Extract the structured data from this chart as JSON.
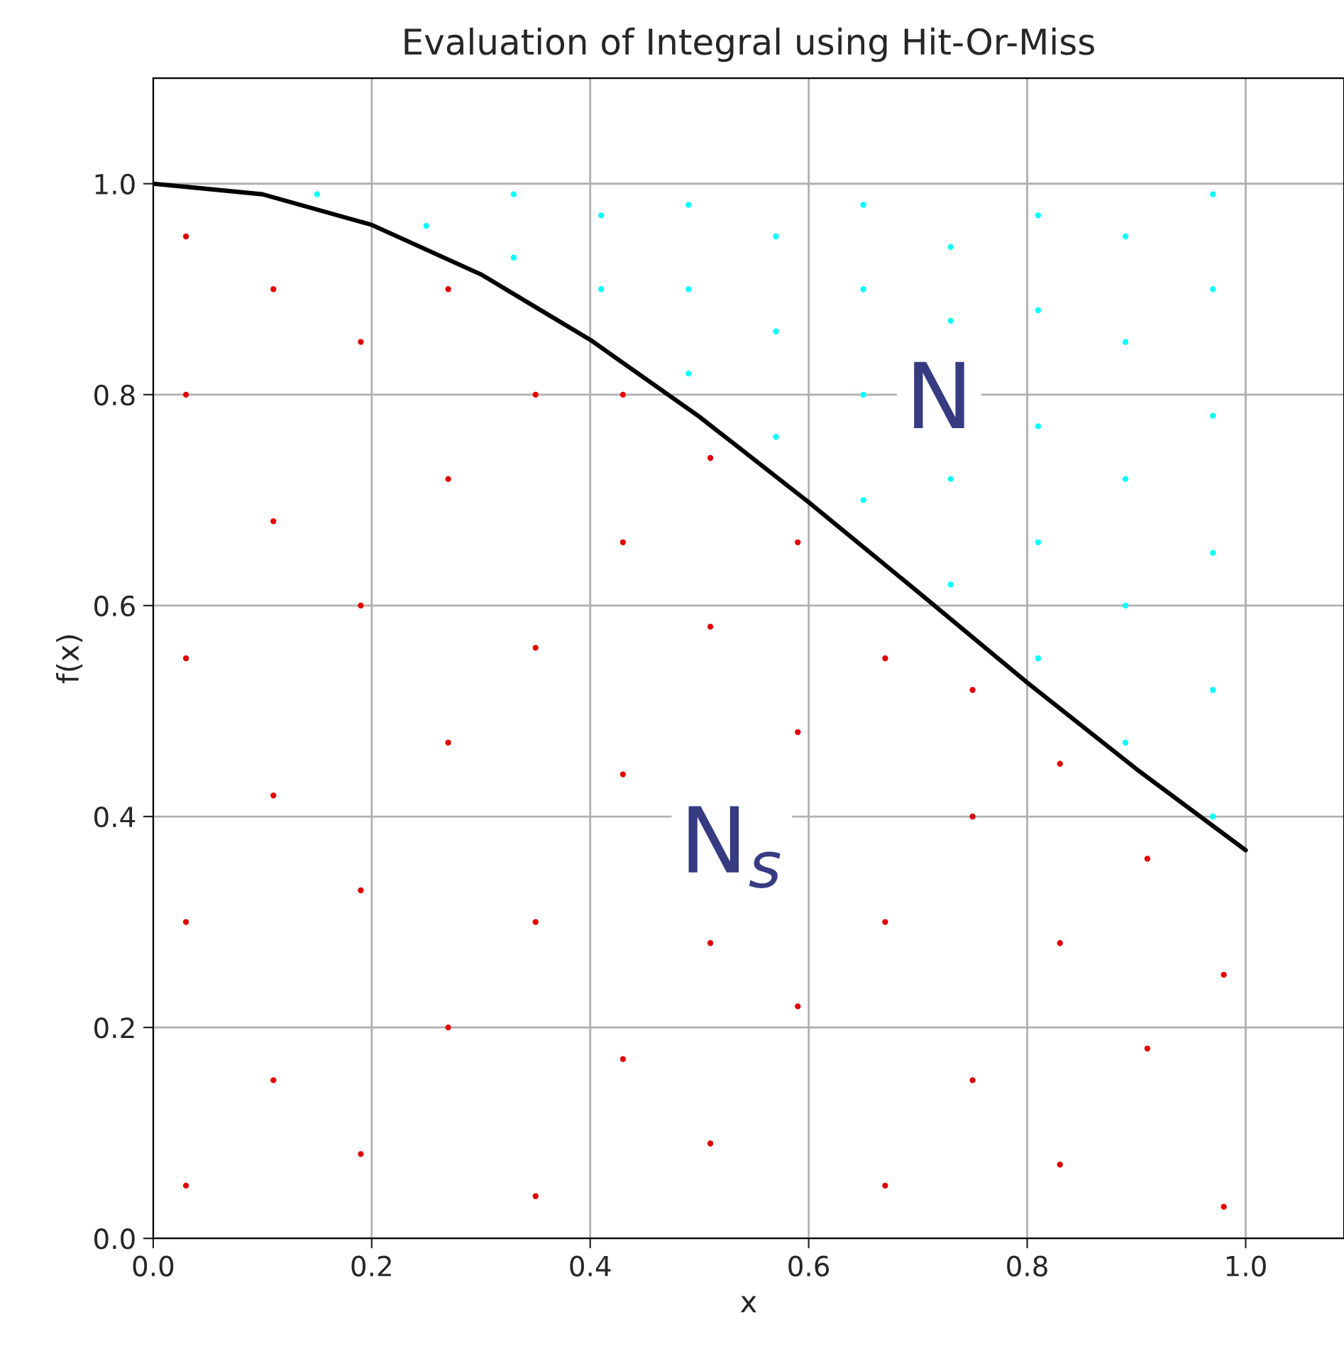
{
  "chart_data": {
    "type": "scatter",
    "title": "Evaluation of Integral using Hit-Or-Miss",
    "xlabel": "x",
    "ylabel": "f(x)",
    "xlim": [
      0,
      1.09
    ],
    "ylim": [
      0,
      1.1
    ],
    "xticks": [
      {
        "value": 0,
        "label": "0.0"
      },
      {
        "value": 0.2,
        "label": "0.2"
      },
      {
        "value": 0.4,
        "label": "0.4"
      },
      {
        "value": 0.6,
        "label": "0.6"
      },
      {
        "value": 0.8,
        "label": "0.8"
      },
      {
        "value": 1.0,
        "label": "1.0"
      }
    ],
    "yticks": [
      {
        "value": 0,
        "label": "0.0"
      },
      {
        "value": 0.2,
        "label": "0.2"
      },
      {
        "value": 0.4,
        "label": "0.4"
      },
      {
        "value": 0.6,
        "label": "0.6"
      },
      {
        "value": 0.8,
        "label": "0.8"
      },
      {
        "value": 1.0,
        "label": "1.0"
      }
    ],
    "grid": true,
    "legend": false,
    "series": [
      {
        "marker": "circle",
        "color": "#e00000",
        "x": [
          0.03,
          0.03,
          0.03,
          0.03,
          0.03,
          0.11,
          0.11,
          0.11,
          0.11,
          0.19,
          0.19,
          0.19,
          0.19,
          0.27,
          0.27,
          0.27,
          0.27,
          0.35,
          0.35,
          0.35,
          0.35,
          0.43,
          0.43,
          0.43,
          0.43,
          0.51,
          0.51,
          0.51,
          0.51,
          0.59,
          0.59,
          0.59,
          0.67,
          0.67,
          0.67,
          0.75,
          0.75,
          0.75,
          0.83,
          0.83,
          0.83,
          0.91,
          0.91,
          0.98,
          0.98
        ],
        "values": [
          0.05,
          0.3,
          0.55,
          0.8,
          0.95,
          0.15,
          0.42,
          0.68,
          0.9,
          0.08,
          0.33,
          0.6,
          0.85,
          0.2,
          0.47,
          0.72,
          0.9,
          0.04,
          0.3,
          0.56,
          0.8,
          0.17,
          0.44,
          0.66,
          0.8,
          0.09,
          0.28,
          0.58,
          0.74,
          0.22,
          0.48,
          0.66,
          0.05,
          0.3,
          0.55,
          0.15,
          0.4,
          0.52,
          0.07,
          0.28,
          0.45,
          0.18,
          0.36,
          0.03,
          0.25
        ]
      },
      {
        "marker": "circle",
        "color": "#00ffff",
        "x": [
          0.15,
          0.25,
          0.33,
          0.33,
          0.41,
          0.41,
          0.49,
          0.49,
          0.49,
          0.57,
          0.57,
          0.57,
          0.65,
          0.65,
          0.65,
          0.65,
          0.73,
          0.73,
          0.73,
          0.73,
          0.81,
          0.81,
          0.81,
          0.81,
          0.81,
          0.89,
          0.89,
          0.89,
          0.89,
          0.89,
          0.97,
          0.97,
          0.97,
          0.97,
          0.97,
          0.97
        ],
        "values": [
          0.99,
          0.96,
          0.93,
          0.99,
          0.9,
          0.97,
          0.82,
          0.9,
          0.98,
          0.76,
          0.86,
          0.95,
          0.7,
          0.8,
          0.9,
          0.98,
          0.62,
          0.72,
          0.87,
          0.94,
          0.55,
          0.66,
          0.77,
          0.88,
          0.97,
          0.47,
          0.6,
          0.72,
          0.85,
          0.95,
          0.4,
          0.52,
          0.65,
          0.78,
          0.9,
          0.99
        ]
      },
      {
        "type": "line",
        "color": "#000000",
        "x": [
          0,
          0.1,
          0.2,
          0.3,
          0.4,
          0.5,
          0.6,
          0.7,
          0.8,
          0.9,
          1.0
        ],
        "values": [
          1.0,
          0.99,
          0.961,
          0.914,
          0.852,
          0.779,
          0.698,
          0.613,
          0.527,
          0.445,
          0.368
        ]
      }
    ],
    "annotations": [
      "N",
      "N$_{s}$"
    ]
  }
}
